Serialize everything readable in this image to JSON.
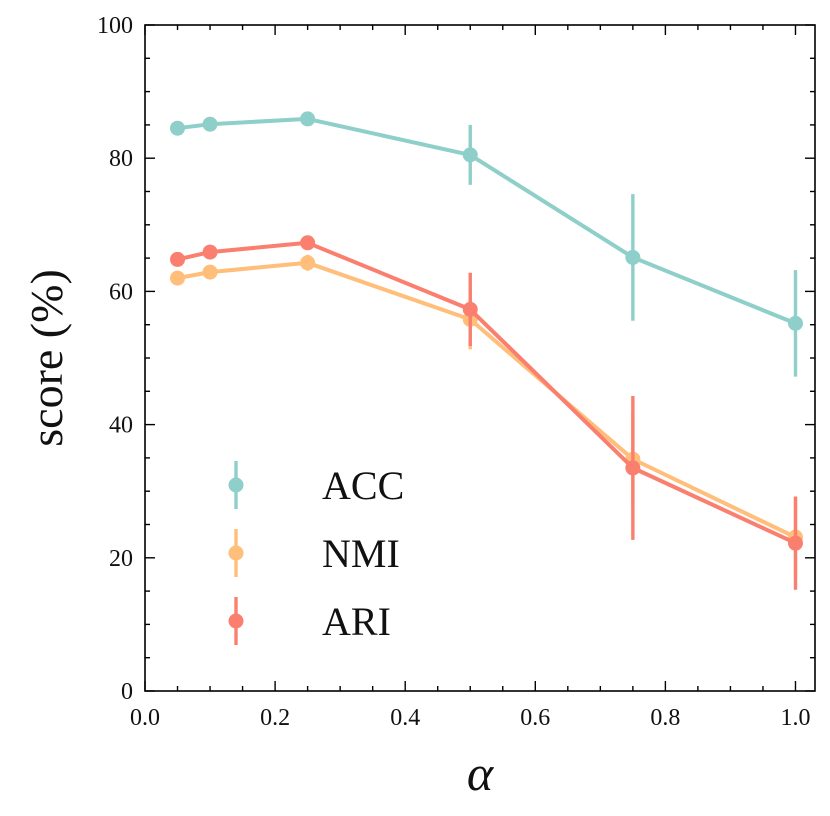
{
  "chart_data": {
    "type": "line",
    "title": "",
    "xlabel": "α",
    "ylabel": "score (%)",
    "xlim": [
      0.0,
      1.03
    ],
    "ylim": [
      0,
      100
    ],
    "x_ticks": [
      0.0,
      0.2,
      0.4,
      0.6,
      0.8,
      1.0
    ],
    "x_tick_labels": [
      "0.0",
      "0.2",
      "0.4",
      "0.6",
      "0.8",
      "1.0"
    ],
    "y_ticks": [
      0,
      20,
      40,
      60,
      80,
      100
    ],
    "y_tick_labels": [
      "0",
      "20",
      "40",
      "60",
      "80",
      "100"
    ],
    "x": [
      0.05,
      0.1,
      0.25,
      0.5,
      0.75,
      1.0
    ],
    "grid": false,
    "legend_position": "lower-left",
    "series": [
      {
        "name": "ACC",
        "color": "#8ecfc9",
        "values": [
          84.5,
          85.1,
          85.9,
          80.5,
          65.1,
          55.2
        ],
        "errors": [
          0.5,
          0.5,
          0.6,
          4.5,
          9.5,
          8.0
        ]
      },
      {
        "name": "NMI",
        "color": "#ffbe7a",
        "values": [
          62.0,
          62.9,
          64.3,
          55.8,
          34.8,
          23.1
        ],
        "errors": [
          0.5,
          0.5,
          1.2,
          4.5,
          7.0,
          6.0
        ]
      },
      {
        "name": "ARI",
        "color": "#fa7f6f",
        "values": [
          64.8,
          65.9,
          67.3,
          57.3,
          33.5,
          22.2
        ],
        "errors": [
          0.5,
          0.5,
          0.5,
          5.5,
          10.8,
          7.0
        ]
      }
    ]
  }
}
